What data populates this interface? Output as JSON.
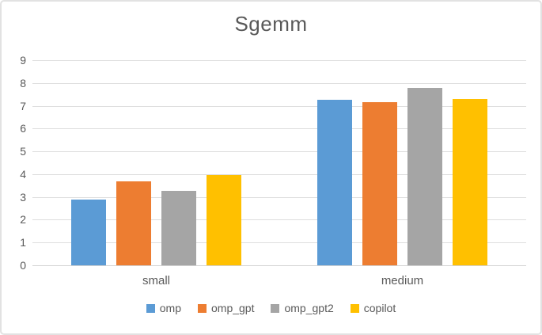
{
  "chart_data": {
    "type": "bar",
    "title": "Sgemm",
    "categories": [
      "small",
      "medium"
    ],
    "series": [
      {
        "name": "omp",
        "color": "#5B9BD5",
        "values": [
          2.9,
          7.25
        ]
      },
      {
        "name": "omp_gpt",
        "color": "#ED7D31",
        "values": [
          3.7,
          7.15
        ]
      },
      {
        "name": "omp_gpt2",
        "color": "#A5A5A5",
        "values": [
          3.25,
          7.8
        ]
      },
      {
        "name": "copilot",
        "color": "#FFC000",
        "values": [
          3.95,
          7.3
        ]
      }
    ],
    "y_axis": {
      "min": 0,
      "max": 9,
      "step": 1,
      "tick_labels": [
        "0",
        "1",
        "2",
        "3",
        "4",
        "5",
        "6",
        "7",
        "8",
        "9"
      ]
    },
    "xlabel": "",
    "ylabel": "",
    "grid": true,
    "legend_position": "bottom"
  },
  "colors": {
    "title_text": "#595959",
    "axis_text": "#595959",
    "gridline": "#dedede",
    "axis_line": "#d2d2d2",
    "frame_border": "#e2e2e2",
    "background": "#ffffff"
  }
}
